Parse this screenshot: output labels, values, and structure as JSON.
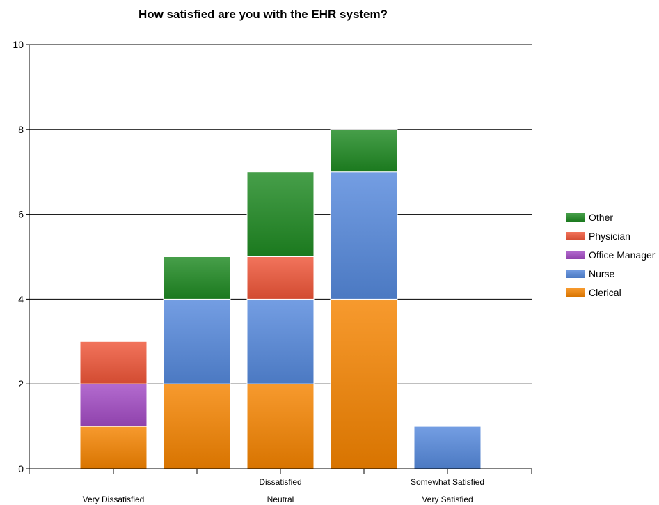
{
  "chart_data": {
    "type": "bar",
    "stacked": true,
    "title": "How satisfied are you with the EHR system?",
    "categories": [
      "Very Dissatisfied",
      "Dissatisfied",
      "Neutral",
      "Somewhat Satisfied",
      "Very Satisfied"
    ],
    "series": [
      {
        "name": "Clerical",
        "values": [
          1,
          2,
          2,
          4,
          0
        ],
        "color": "#f58400"
      },
      {
        "name": "Nurse",
        "values": [
          0,
          2,
          2,
          3,
          1
        ],
        "color": "#5589dd"
      },
      {
        "name": "Office Manager",
        "values": [
          1,
          0,
          0,
          0,
          0
        ],
        "color": "#a24bc4"
      },
      {
        "name": "Physician",
        "values": [
          1,
          0,
          1,
          0,
          0
        ],
        "color": "#ef5538"
      },
      {
        "name": "Other",
        "values": [
          0,
          1,
          2,
          1,
          0
        ],
        "color": "#1f8a22"
      }
    ],
    "yticks": [
      "0",
      "2",
      "4",
      "6",
      "8",
      "10"
    ],
    "ylim": [
      0,
      10
    ],
    "grid": true,
    "legend_position": "right",
    "xlabel": "",
    "ylabel": ""
  }
}
